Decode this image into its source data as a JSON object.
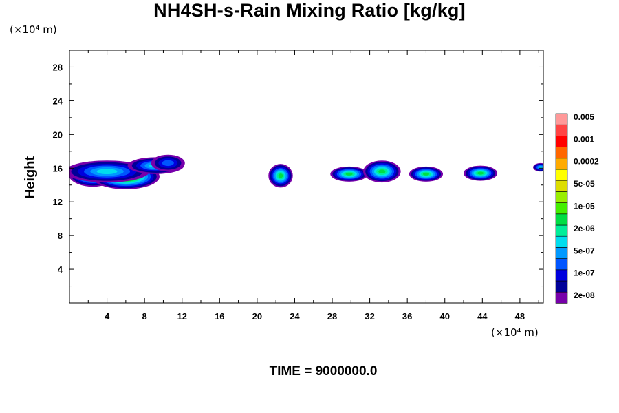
{
  "chart_data": {
    "type": "heatmap",
    "title": "NH4SH-s-Rain Mixing Ratio [kg/kg]",
    "ylabel": "Height",
    "x_unit": "(×10⁴ m)",
    "y_unit": "(×10⁴ m)",
    "xlim": [
      0,
      50.5
    ],
    "ylim": [
      0,
      30
    ],
    "x_ticks": [
      4,
      8,
      12,
      16,
      20,
      24,
      28,
      32,
      36,
      40,
      44,
      48
    ],
    "y_ticks": [
      4,
      8,
      12,
      16,
      20,
      24,
      28
    ],
    "x_tick_labels": [
      "4",
      "8",
      "12",
      "16",
      "20",
      "24",
      "28",
      "32",
      "36",
      "40",
      "44",
      "48"
    ],
    "y_tick_labels": [
      "4",
      "8",
      "12",
      "16",
      "20",
      "24",
      "28"
    ],
    "colorbar": {
      "colors": [
        "#7700aa",
        "#000099",
        "#0000dd",
        "#0055ff",
        "#0099ff",
        "#00ddee",
        "#00ee99",
        "#00dd44",
        "#44ee00",
        "#99ee00",
        "#dddd00",
        "#ffff00",
        "#ffaa00",
        "#ff6600",
        "#ff0000",
        "#ff4444",
        "#ff9999"
      ],
      "labels": [
        "2e-08",
        "1e-07",
        "5e-07",
        "2e-06",
        "1e-05",
        "5e-05",
        "0.0002",
        "0.001",
        "0.005"
      ]
    },
    "features": [
      {
        "x": 2.5,
        "y": 15.3,
        "dx": 2.6,
        "dy": 1.5,
        "level": 9
      },
      {
        "x": 6.0,
        "y": 15.0,
        "dx": 3.6,
        "dy": 1.5,
        "level": 10
      },
      {
        "x": 4.0,
        "y": 15.6,
        "dx": 4.5,
        "dy": 1.3,
        "level": 5
      },
      {
        "x": 9.2,
        "y": 16.3,
        "dx": 3.0,
        "dy": 1.0,
        "level": 5
      },
      {
        "x": 10.5,
        "y": 16.6,
        "dx": 1.8,
        "dy": 1.0,
        "level": 3
      },
      {
        "x": 22.5,
        "y": 15.1,
        "dx": 1.3,
        "dy": 1.4,
        "level": 7
      },
      {
        "x": 29.8,
        "y": 15.3,
        "dx": 2.0,
        "dy": 0.9,
        "level": 7
      },
      {
        "x": 33.3,
        "y": 15.6,
        "dx": 2.0,
        "dy": 1.3,
        "level": 7
      },
      {
        "x": 38.0,
        "y": 15.3,
        "dx": 1.8,
        "dy": 0.9,
        "level": 7
      },
      {
        "x": 43.8,
        "y": 15.4,
        "dx": 1.8,
        "dy": 0.9,
        "level": 7
      },
      {
        "x": 50.2,
        "y": 16.1,
        "dx": 0.8,
        "dy": 0.5,
        "level": 5
      }
    ]
  },
  "time_label": "TIME = 9000000.0"
}
